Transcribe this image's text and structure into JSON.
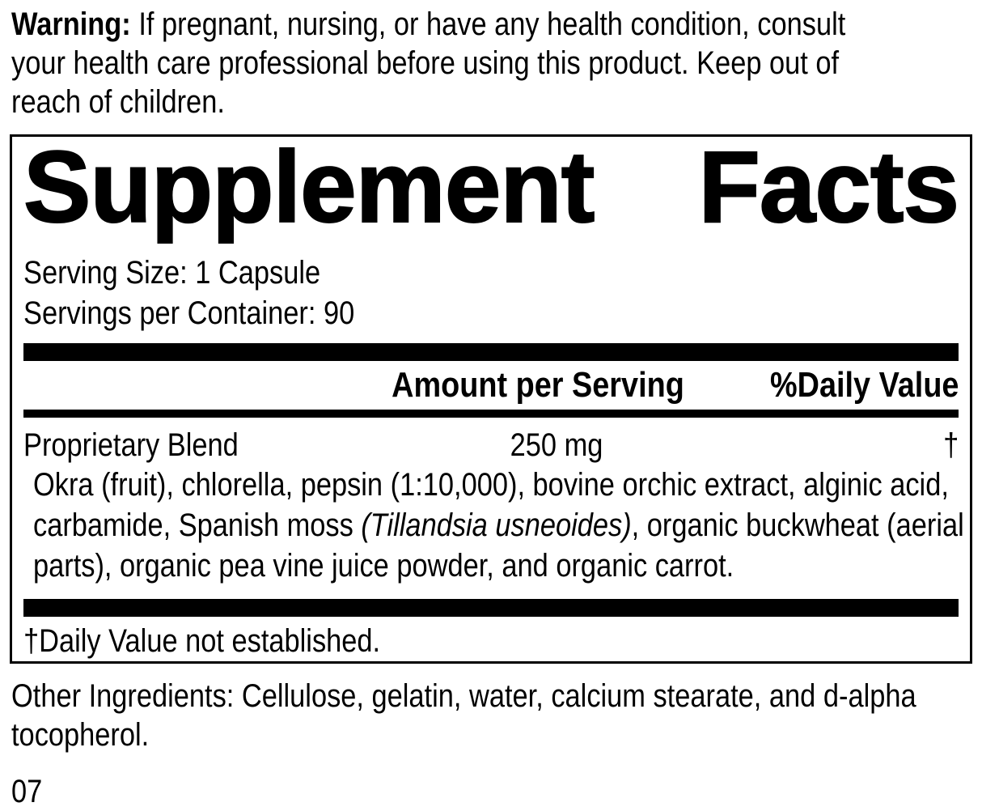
{
  "colors": {
    "text": "#000000",
    "background": "#ffffff"
  },
  "warning": {
    "label": "Warning:",
    "line1_rest": " If pregnant, nursing, or have any health condition, consult",
    "line2": "your health care professional before using this product. Keep out of",
    "line3": "reach of children."
  },
  "panel": {
    "title_left": "Supplement",
    "title_right": "Facts",
    "serving_size": "Serving Size: 1 Capsule",
    "servings_per_container": "Servings per Container: 90",
    "column_headers": {
      "amount": "Amount per Serving",
      "daily_value": "%Daily Value"
    },
    "rows": [
      {
        "name": "Proprietary Blend",
        "amount": "250 mg",
        "daily_value": "†"
      }
    ],
    "blend_description": {
      "line1": "Okra (fruit), chlorella, pepsin (1:10,000), bovine orchic extract, alginic acid,",
      "line2_pre": "carbamide, Spanish moss ",
      "line2_italic": "(Tillandsia usneoides)",
      "line2_post": ", organic buckwheat (aerial",
      "line3": "parts), organic pea vine juice powder, and organic carrot."
    },
    "footnote": "†Daily Value not established."
  },
  "other_ingredients": {
    "line1": "Other Ingredients: Cellulose, gelatin, water, calcium stearate, and d-alpha",
    "line2": "tocopherol."
  },
  "footer_code": "07"
}
